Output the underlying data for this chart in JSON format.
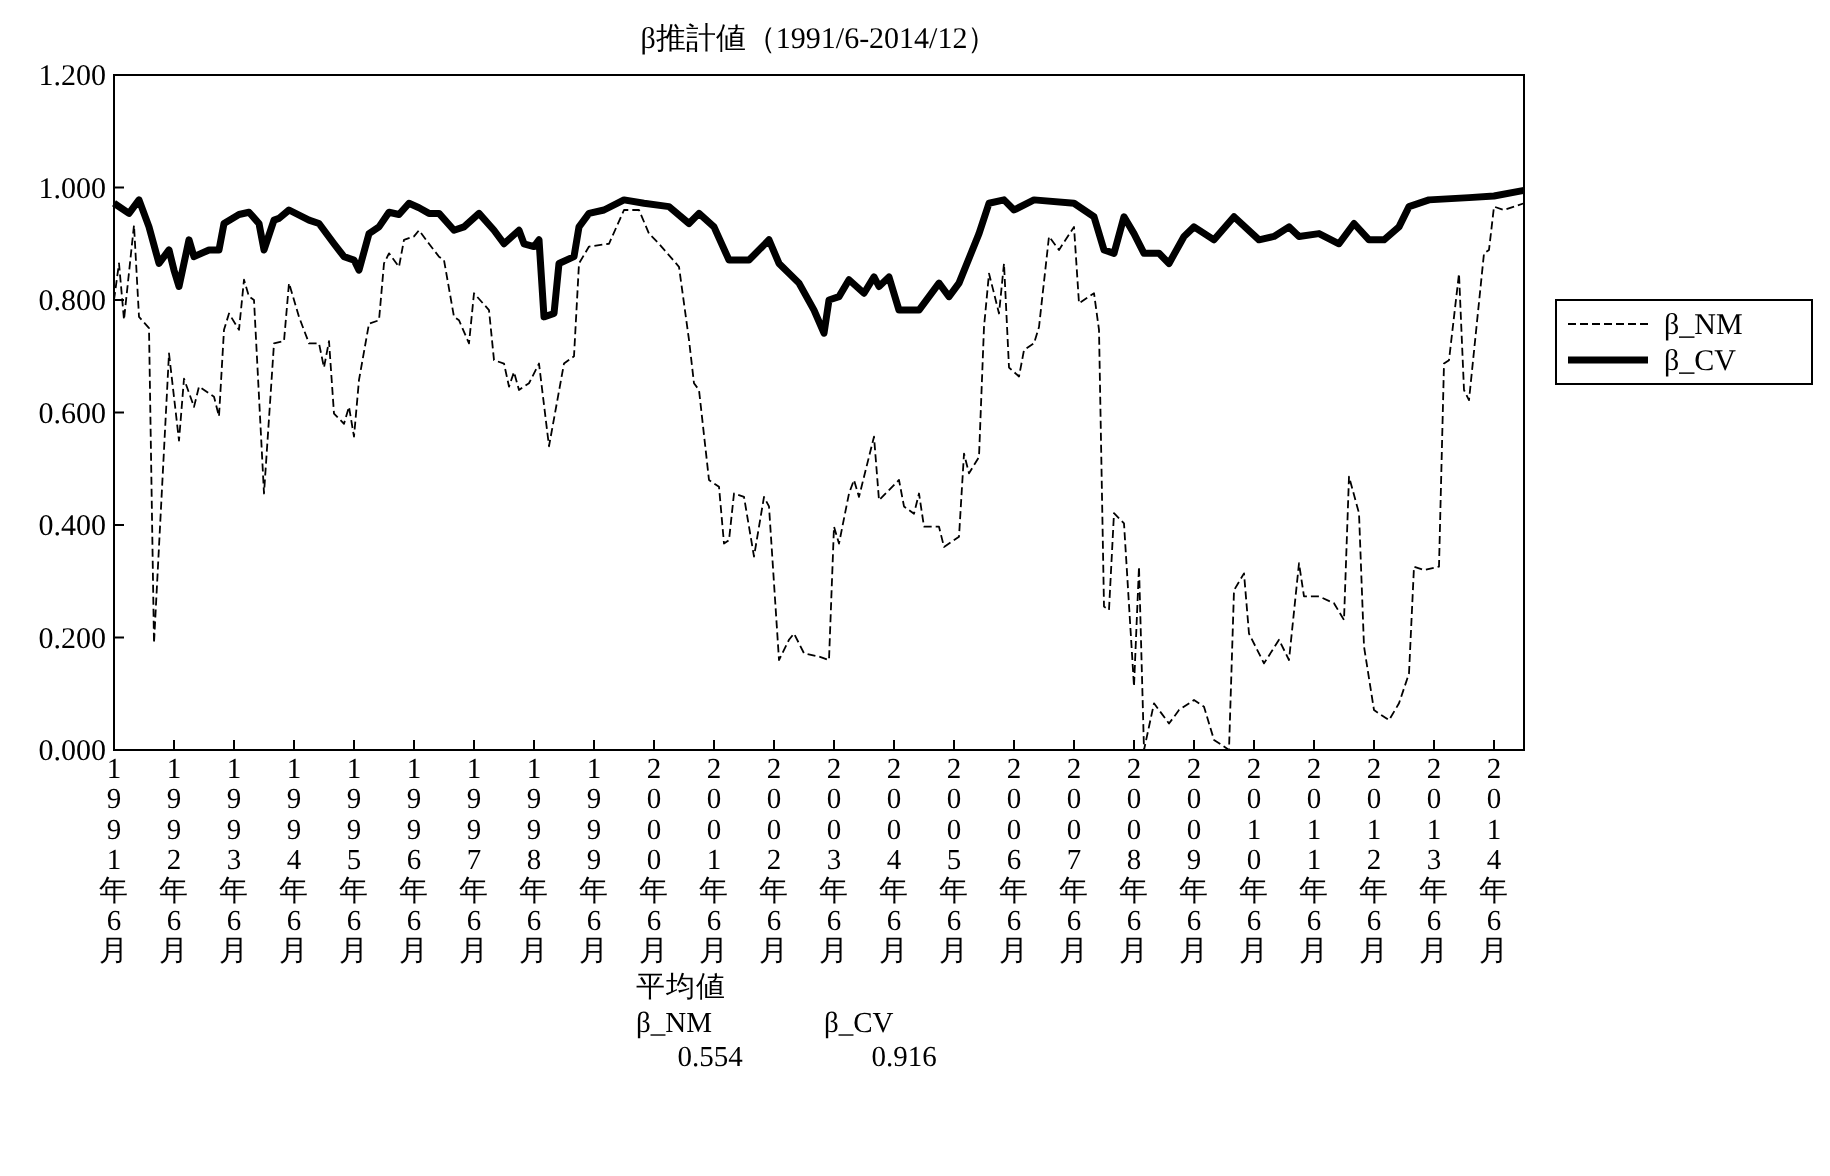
{
  "chart_data": {
    "type": "line",
    "title": "β推計値（1991/6-2014/12）",
    "xlim": [
      "1991-06",
      "2014-12"
    ],
    "xticks": [
      {
        "value": "1991-06",
        "label": "1991年6月"
      },
      {
        "value": "1992-06",
        "label": "1992年6月"
      },
      {
        "value": "1993-06",
        "label": "1993年6月"
      },
      {
        "value": "1994-06",
        "label": "1994年6月"
      },
      {
        "value": "1995-06",
        "label": "1995年6月"
      },
      {
        "value": "1996-06",
        "label": "1996年6月"
      },
      {
        "value": "1997-06",
        "label": "1997年6月"
      },
      {
        "value": "1998-06",
        "label": "1998年6月"
      },
      {
        "value": "1999-06",
        "label": "1999年6月"
      },
      {
        "value": "2000-06",
        "label": "2000年6月"
      },
      {
        "value": "2001-06",
        "label": "2001年6月"
      },
      {
        "value": "2002-06",
        "label": "2002年6月"
      },
      {
        "value": "2003-06",
        "label": "2003年6月"
      },
      {
        "value": "2004-06",
        "label": "2004年6月"
      },
      {
        "value": "2005-06",
        "label": "2005年6月"
      },
      {
        "value": "2006-06",
        "label": "2006年6月"
      },
      {
        "value": "2007-06",
        "label": "2007年6月"
      },
      {
        "value": "2008-06",
        "label": "2008年6月"
      },
      {
        "value": "2009-06",
        "label": "2009年6月"
      },
      {
        "value": "2010-06",
        "label": "2010年6月"
      },
      {
        "value": "2011-06",
        "label": "2011年6月"
      },
      {
        "value": "2012-06",
        "label": "2012年6月"
      },
      {
        "value": "2013-06",
        "label": "2013年6月"
      },
      {
        "value": "2014-06",
        "label": "2014年6月"
      }
    ],
    "ylim": [
      0,
      1.2
    ],
    "yticks": [
      {
        "value": 0,
        "label": "0.000"
      },
      {
        "value": 0.2,
        "label": "0.200"
      },
      {
        "value": 0.4,
        "label": "0.400"
      },
      {
        "value": 0.6,
        "label": "0.600"
      },
      {
        "value": 0.8,
        "label": "0.800"
      },
      {
        "value": 1.0,
        "label": "1.000"
      },
      {
        "value": 1.2,
        "label": "1.200"
      }
    ],
    "legend": "right",
    "annotations": [
      "平均値",
      "β_NM",
      "β_CV",
      "0.554",
      "0.916"
    ],
    "series": [
      {
        "name": "β_NM",
        "color": "#000000",
        "line_style": "dashed",
        "x": [
          "1991-06",
          "1991-07",
          "1991-08",
          "1991-10",
          "1991-11",
          "1992-01",
          "1992-02",
          "1992-05",
          "1992-07",
          "1992-08",
          "1992-10",
          "1992-11",
          "1993-02",
          "1993-03",
          "1993-04",
          "1993-05",
          "1993-07",
          "1993-08",
          "1993-09",
          "1993-10",
          "1993-12",
          "1994-02",
          "1994-04",
          "1994-05",
          "1994-07",
          "1994-09",
          "1994-11",
          "1994-12",
          "1995-01",
          "1995-02",
          "1995-04",
          "1995-05",
          "1995-06",
          "1995-07",
          "1995-09",
          "1995-11",
          "1995-12",
          "1996-01",
          "1996-03",
          "1996-04",
          "1996-06",
          "1996-07",
          "1996-09",
          "1996-11",
          "1996-12",
          "1997-02",
          "1997-03",
          "1997-05",
          "1997-06",
          "1997-09",
          "1997-10",
          "1997-12",
          "1998-01",
          "1998-02",
          "1998-03",
          "1998-05",
          "1998-07",
          "1998-09",
          "1998-12",
          "1999-02",
          "1999-03",
          "1999-05",
          "1999-09",
          "1999-12",
          "2000-03",
          "2000-05",
          "2000-07",
          "2000-11",
          "2001-01",
          "2001-02",
          "2001-03",
          "2001-05",
          "2001-07",
          "2001-08",
          "2001-09",
          "2001-10",
          "2001-12",
          "2002-02",
          "2002-04",
          "2002-05",
          "2002-07",
          "2002-09",
          "2002-10",
          "2002-12",
          "2003-03",
          "2003-05",
          "2003-06",
          "2003-07",
          "2003-09",
          "2003-10",
          "2003-11",
          "2004-02",
          "2004-03",
          "2004-07",
          "2004-08",
          "2004-10",
          "2004-11",
          "2004-12",
          "2005-03",
          "2005-04",
          "2005-07",
          "2005-08",
          "2005-09",
          "2005-11",
          "2005-12",
          "2006-01",
          "2006-02",
          "2006-03",
          "2006-04",
          "2006-05",
          "2006-07",
          "2006-08",
          "2006-10",
          "2006-11",
          "2007-01",
          "2007-03",
          "2007-06",
          "2007-07",
          "2007-10",
          "2007-11",
          "2007-12",
          "2008-01",
          "2008-02",
          "2008-04",
          "2008-06",
          "2008-07",
          "2008-08",
          "2008-10",
          "2009-01",
          "2009-03",
          "2009-06",
          "2009-08",
          "2009-10",
          "2010-01",
          "2010-02",
          "2010-04",
          "2010-05",
          "2010-08",
          "2010-11",
          "2011-01",
          "2011-03",
          "2011-04",
          "2011-07",
          "2011-10",
          "2011-12",
          "2012-01",
          "2012-03",
          "2012-04",
          "2012-06",
          "2012-09",
          "2012-11",
          "2013-01",
          "2013-02",
          "2013-04",
          "2013-07",
          "2013-08",
          "2013-09",
          "2013-11",
          "2013-12",
          "2014-01",
          "2014-04",
          "2014-05",
          "2014-06",
          "2014-08",
          "2014-12"
        ],
        "values": [
          0.8,
          0.865,
          0.765,
          0.933,
          0.77,
          0.75,
          0.19,
          0.705,
          0.55,
          0.66,
          0.61,
          0.646,
          0.628,
          0.593,
          0.747,
          0.776,
          0.747,
          0.836,
          0.806,
          0.8,
          0.456,
          0.723,
          0.727,
          0.83,
          0.77,
          0.723,
          0.723,
          0.68,
          0.727,
          0.598,
          0.58,
          0.61,
          0.557,
          0.658,
          0.758,
          0.764,
          0.865,
          0.883,
          0.859,
          0.907,
          0.913,
          0.924,
          0.9,
          0.877,
          0.871,
          0.77,
          0.764,
          0.723,
          0.812,
          0.782,
          0.693,
          0.687,
          0.646,
          0.672,
          0.64,
          0.652,
          0.687,
          0.54,
          0.687,
          0.7,
          0.865,
          0.895,
          0.9,
          0.96,
          0.96,
          0.918,
          0.9,
          0.859,
          0.729,
          0.652,
          0.64,
          0.48,
          0.468,
          0.367,
          0.373,
          0.456,
          0.45,
          0.344,
          0.45,
          0.433,
          0.16,
          0.196,
          0.207,
          0.172,
          0.166,
          0.16,
          0.397,
          0.367,
          0.456,
          0.48,
          0.45,
          0.557,
          0.444,
          0.48,
          0.433,
          0.42,
          0.456,
          0.397,
          0.397,
          0.361,
          0.379,
          0.527,
          0.492,
          0.521,
          0.752,
          0.847,
          0.812,
          0.776,
          0.865,
          0.68,
          0.664,
          0.711,
          0.723,
          0.752,
          0.913,
          0.889,
          0.93,
          0.794,
          0.812,
          0.747,
          0.255,
          0.249,
          0.421,
          0.403,
          0.113,
          0.326,
          0.0,
          0.083,
          0.047,
          0.071,
          0.089,
          0.077,
          0.018,
          0.0,
          0.284,
          0.314,
          0.207,
          0.154,
          0.196,
          0.16,
          0.332,
          0.273,
          0.273,
          0.261,
          0.231,
          0.486,
          0.421,
          0.184,
          0.071,
          0.053,
          0.083,
          0.136,
          0.326,
          0.32,
          0.326,
          0.687,
          0.693,
          0.847,
          0.64,
          0.622,
          0.883,
          0.889,
          0.966,
          0.96,
          0.972
        ]
      },
      {
        "name": "β_CV",
        "color": "#000000",
        "line_style": "solid",
        "x": [
          "1991-06",
          "1991-09",
          "1991-11",
          "1992-01",
          "1992-03",
          "1992-05",
          "1992-06",
          "1992-07",
          "1992-09",
          "1992-10",
          "1993-01",
          "1993-03",
          "1993-04",
          "1993-07",
          "1993-09",
          "1993-11",
          "1993-12",
          "1994-02",
          "1994-03",
          "1994-05",
          "1994-09",
          "1994-11",
          "1995-02",
          "1995-04",
          "1995-06",
          "1995-07",
          "1995-09",
          "1995-11",
          "1996-01",
          "1996-03",
          "1996-05",
          "1996-07",
          "1996-09",
          "1996-11",
          "1997-02",
          "1997-04",
          "1997-07",
          "1997-10",
          "1997-12",
          "1998-03",
          "1998-04",
          "1998-06",
          "1998-07",
          "1998-08",
          "1998-10",
          "1998-11",
          "1999-02",
          "1999-03",
          "1999-05",
          "1999-08",
          "1999-12",
          "2000-04",
          "2000-09",
          "2001-01",
          "2001-03",
          "2001-06",
          "2001-09",
          "2002-01",
          "2002-05",
          "2002-07",
          "2002-11",
          "2003-02",
          "2003-04",
          "2003-05",
          "2003-07",
          "2003-09",
          "2003-12",
          "2004-02",
          "2004-03",
          "2004-05",
          "2004-07",
          "2004-11",
          "2005-03",
          "2005-05",
          "2005-07",
          "2005-11",
          "2006-01",
          "2006-04",
          "2006-06",
          "2006-10",
          "2007-06",
          "2007-10",
          "2007-12",
          "2008-02",
          "2008-04",
          "2008-06",
          "2008-08",
          "2008-11",
          "2009-01",
          "2009-04",
          "2009-06",
          "2009-10",
          "2010-02",
          "2010-07",
          "2010-10",
          "2011-01",
          "2011-03",
          "2011-07",
          "2011-11",
          "2012-02",
          "2012-05",
          "2012-08",
          "2012-11",
          "2013-01",
          "2013-05",
          "2014-01",
          "2014-06",
          "2014-12"
        ],
        "values": [
          0.972,
          0.954,
          0.978,
          0.93,
          0.865,
          0.889,
          0.853,
          0.824,
          0.907,
          0.877,
          0.889,
          0.889,
          0.936,
          0.952,
          0.956,
          0.936,
          0.889,
          0.942,
          0.945,
          0.96,
          0.942,
          0.936,
          0.9,
          0.877,
          0.871,
          0.853,
          0.918,
          0.93,
          0.956,
          0.952,
          0.972,
          0.964,
          0.954,
          0.954,
          0.924,
          0.93,
          0.954,
          0.924,
          0.9,
          0.924,
          0.9,
          0.895,
          0.907,
          0.77,
          0.776,
          0.865,
          0.877,
          0.93,
          0.954,
          0.96,
          0.978,
          0.972,
          0.966,
          0.936,
          0.954,
          0.93,
          0.871,
          0.871,
          0.907,
          0.865,
          0.83,
          0.782,
          0.741,
          0.8,
          0.806,
          0.836,
          0.812,
          0.841,
          0.824,
          0.841,
          0.782,
          0.782,
          0.83,
          0.806,
          0.83,
          0.918,
          0.972,
          0.978,
          0.96,
          0.978,
          0.972,
          0.948,
          0.889,
          0.883,
          0.948,
          0.918,
          0.883,
          0.883,
          0.865,
          0.913,
          0.93,
          0.907,
          0.948,
          0.907,
          0.913,
          0.93,
          0.913,
          0.918,
          0.9,
          0.936,
          0.907,
          0.907,
          0.93,
          0.966,
          0.978,
          0.982,
          0.985,
          0.995
        ]
      }
    ]
  }
}
